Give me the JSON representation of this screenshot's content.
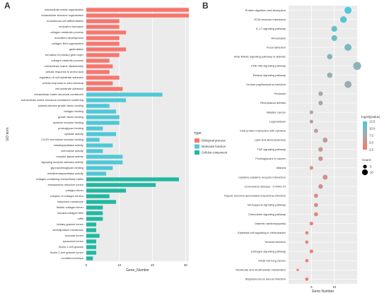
{
  "chart_data": [
    {
      "panel_label": "A",
      "type": "bar",
      "orientation": "horizontal",
      "xlabel": "Gene_Number",
      "ylabel": "GO term",
      "xlim": [
        0,
        31
      ],
      "xticks": [
        0,
        10,
        20,
        30
      ],
      "legend": {
        "title": "type",
        "placement": "right",
        "entries": [
          {
            "name": "Biological process",
            "color": "#F8766D"
          },
          {
            "name": "Molecular function",
            "color": "#4FC8D8"
          },
          {
            "name": "Cellular component",
            "color": "#21B8A0"
          }
        ]
      },
      "series": [
        {
          "name": "Biological process",
          "categories": [
            "extracellular matrix organization",
            "extracellular structure organization",
            "endodermal cell differentiation",
            "endoderm formation",
            "collagen metabolic process",
            "endoderm development",
            "collagen fibril organization",
            "gastrulation",
            "formation of primary germ layer",
            "collagen catabolic process",
            "extracellular matrix disassembly",
            "cellular response to amino acid",
            "regulation of cell-substrate adhesion",
            "cellular response to acid chemical",
            "cell-substrate adhesion"
          ],
          "values": [
            31,
            31,
            10,
            10,
            12,
            10,
            10,
            12,
            10,
            7,
            8,
            7,
            10,
            8,
            11
          ]
        },
        {
          "name": "Molecular function",
          "categories": [
            "extracellular matrix structural constituent",
            "extracellular matrix structural constituent conferring",
            "platelet-derived growth factor binding",
            "collagen binding",
            "growth factor binding",
            "cytokine receptor binding",
            "proteoglycan binding",
            "cytokine activity",
            "CXCR chemokine receptor binding",
            "metallopeptidase activity",
            "chemokine activity",
            "receptor ligand activity",
            "signaling receptor activator activity",
            "glycosaminoglycan binding",
            "metalloendopeptidase activity"
          ],
          "values": [
            23,
            12,
            7,
            9,
            10,
            10,
            5,
            9,
            4,
            8,
            5,
            11,
            11,
            8,
            6
          ]
        },
        {
          "name": "Cellular component",
          "categories": [
            "collagen-containing extracellular matrix",
            "endoplasmic reticulum lumen",
            "collagen trimer",
            "complex of collagen trimers",
            "basement membrane",
            "fibrillar collagen trimer",
            "banded collagen fibril",
            "ruffle",
            "tertiary granule lumen",
            "lamellipodium membrane",
            "vacuolar lumen",
            "lysosomal lumen",
            "ficolin-1-rich granule",
            "ficolin-1-rich granule lumen",
            "cornified envelope"
          ],
          "values": [
            28,
            21,
            12,
            7,
            9,
            5,
            5,
            5,
            3,
            3,
            4,
            3,
            3,
            3,
            2
          ]
        }
      ]
    },
    {
      "panel_label": "B",
      "type": "scatter",
      "xlabel": "Gene Number",
      "xlim": [
        0,
        15
      ],
      "xticks": [
        5,
        10
      ],
      "categories": [
        "Protein digestion and absorption",
        "ECM-receptor interaction",
        "IL-17 signaling pathway",
        "Amoebiasis",
        "Focal adhesion",
        "AGE-RAGE signaling pathway in diabetic",
        "PI3K-Akt signaling pathway",
        "Relaxin signaling pathway",
        "Human papillomavirus infection",
        "Pertussis",
        "Rheumatoid arthritis",
        "Bladder cancer",
        "Legionellosis",
        "Viral protein interaction with cytokine",
        "Lipid and atherosclerosis",
        "TNF signaling pathway",
        "Proteoglycans in cancer",
        "Malaria",
        "Cytokine-cytokine receptor interaction",
        "Coronavirus disease - COVID-19",
        "Kaposi sarcoma-associated herpesvirus infection",
        "NF-kappa B signaling pathway",
        "Chemokine signaling pathway",
        "Diabetic cardiomyopathy",
        "Epithelial cell signaling in Helicobacter",
        "Yersinia infection",
        "Estrogen signaling pathway",
        "Small cell lung cancer",
        "Nicotinate and nicotinamide metabolism",
        "Staphylococcus aureus infection"
      ],
      "x": [
        13,
        12,
        10,
        10,
        13,
        9,
        15,
        9,
        13,
        7,
        7,
        5,
        5,
        6,
        8,
        7,
        7,
        5,
        8,
        7,
        6,
        6,
        6,
        5,
        4,
        4,
        5,
        4,
        2,
        4
      ],
      "neg_log10_pvalue": [
        12.5,
        11.8,
        11.2,
        10.6,
        10.1,
        9.6,
        9.0,
        8.7,
        8.3,
        7.9,
        7.5,
        7.1,
        6.8,
        6.5,
        6.2,
        5.9,
        5.6,
        5.3,
        5.1,
        4.8,
        4.6,
        4.3,
        4.1,
        3.8,
        3.6,
        3.4,
        3.2,
        3.0,
        2.8,
        2.5
      ],
      "color_legend": {
        "title": "-log10(pvalue)",
        "ticks": [
          12.5,
          10.0,
          7.5,
          5.0,
          2.5
        ],
        "range": [
          2.5,
          12.5
        ],
        "low_color": "#F8766D",
        "high_color": "#4FC8D8"
      },
      "size_legend": {
        "title": "Count",
        "ticks": [
          5,
          10
        ]
      }
    }
  ]
}
